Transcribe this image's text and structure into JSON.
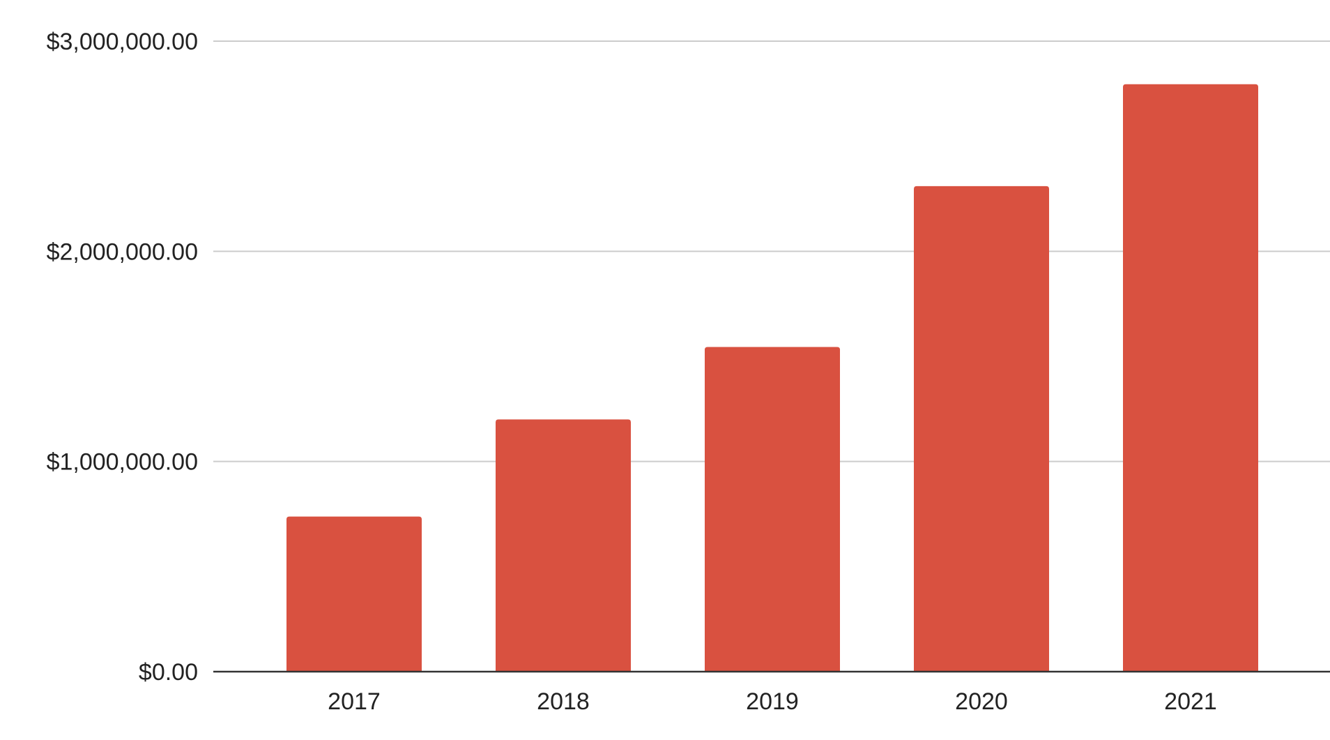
{
  "chart_data": {
    "type": "bar",
    "title": "",
    "xlabel": "",
    "ylabel": "",
    "categories": [
      "2017",
      "2018",
      "2019",
      "2020",
      "2021"
    ],
    "values": [
      738000,
      1200000,
      1545000,
      2310000,
      2795000
    ],
    "ylim": [
      0,
      3000000
    ],
    "yticks": [
      {
        "value": 0,
        "label": "$0.00"
      },
      {
        "value": 1000000,
        "label": "$1,000,000.00"
      },
      {
        "value": 2000000,
        "label": "$2,000,000.00"
      },
      {
        "value": 3000000,
        "label": "$3,000,000.00"
      }
    ],
    "grid": true,
    "legend": "none",
    "colors": {
      "bar": "#d95140",
      "grid": "#cccccc",
      "baseline": "#333333",
      "text": "#222222"
    }
  }
}
